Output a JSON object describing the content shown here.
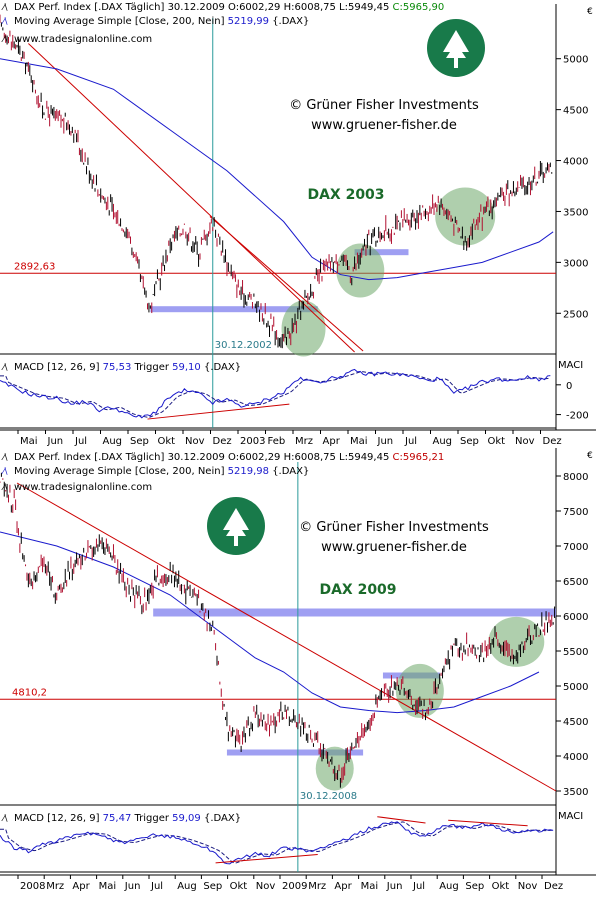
{
  "panels": [
    {
      "id": "p2003",
      "header": {
        "index_label": "DAX Perf. Index [.DAX  Täglich]",
        "date": "30.12.2009",
        "o": "O:6002,29",
        "hl": "H:6008,75 L:5949,45",
        "c": "C:5965,90",
        "ma_label": "Moving Average Simple [Close, 200, Nein]",
        "ma_value": "5219,99",
        "ma_suffix": "{.DAX}"
      },
      "site": "www.tradesignalonline.com",
      "copyright": "© Grüner Fisher Investments",
      "url": "www.gruener-fisher.de",
      "title": "DAX 2003",
      "hline_label": "2892,63",
      "vline_label": "30.12.2002",
      "macd_label": "MACD [12, 26, 9]",
      "macd_value": "75,53",
      "trigger_label": "Trigger",
      "trigger_value": "59,10",
      "macd_suffix": "{.DAX}",
      "macd_axis_title": "MACI",
      "euro": "€",
      "months": [
        "Mai",
        "Jun",
        "Jul",
        "Aug",
        "Sep",
        "Okt",
        "Nov",
        "Dez",
        "2003",
        "Feb",
        "Mrz",
        "Apr",
        "Mai",
        "Jun",
        "Jul",
        "Aug",
        "Sep",
        "Okt",
        "Nov",
        "Dez"
      ]
    },
    {
      "id": "p2009",
      "header": {
        "index_label": "DAX Perf. Index [.DAX  Täglich]",
        "date": "30.12.2009",
        "o": "O:6002,29",
        "hl": "H:6008,75 L:5949,45",
        "c": "C:5965,21",
        "ma_label": "Moving Average Simple [Close, 200, Nein]",
        "ma_value": "5219,98",
        "ma_suffix": "{.DAX}"
      },
      "site": "www.tradesignalonline.com",
      "copyright": "© Grüner Fisher Investments",
      "url": "www.gruener-fisher.de",
      "title": "DAX 2009",
      "hline_label": "4810,2",
      "vline_label": "30.12.2008",
      "macd_label": "MACD [12, 26, 9]",
      "macd_value": "75,47",
      "trigger_label": "Trigger",
      "trigger_value": "59,09",
      "macd_suffix": "{.DAX}",
      "macd_axis_title": "MACI",
      "euro": "€",
      "months": [
        "2008",
        "Mrz",
        "Apr",
        "Mai",
        "Jun",
        "Jul",
        "Aug",
        "Sep",
        "Okt",
        "Nov",
        "2009",
        "Mrz",
        "Apr",
        "Mai",
        "Jun",
        "Jul",
        "Aug",
        "Sep",
        "Okt",
        "Nov",
        "Dez"
      ]
    }
  ],
  "chart_data": [
    {
      "type": "line",
      "title": "DAX 2003",
      "series": [
        {
          "name": "DAX Perf. Index",
          "points": [
            [
              0,
              5300
            ],
            [
              0.5,
              5150
            ],
            [
              1,
              4900
            ],
            [
              1.5,
              4500
            ],
            [
              2,
              4400
            ],
            [
              2.5,
              4350
            ],
            [
              3,
              4000
            ],
            [
              3.5,
              3700
            ],
            [
              4,
              3500
            ],
            [
              4.5,
              3300
            ],
            [
              5,
              2800
            ],
            [
              5.3,
              2550
            ],
            [
              6,
              3200
            ],
            [
              6.5,
              3350
            ],
            [
              7,
              3100
            ],
            [
              7.5,
              3400
            ],
            [
              8,
              3000
            ],
            [
              8.5,
              2700
            ],
            [
              9,
              2600
            ],
            [
              9.5,
              2400
            ],
            [
              10,
              2200
            ],
            [
              10.5,
              2450
            ],
            [
              11,
              2750
            ],
            [
              11.3,
              2900
            ],
            [
              12,
              3050
            ],
            [
              12.4,
              2900
            ],
            [
              13,
              3200
            ],
            [
              13.5,
              3300
            ],
            [
              14,
              3350
            ],
            [
              14.5,
              3450
            ],
            [
              15,
              3500
            ],
            [
              15.5,
              3600
            ],
            [
              16,
              3400
            ],
            [
              16.4,
              3200
            ],
            [
              16.8,
              3400
            ],
            [
              17.5,
              3600
            ],
            [
              18,
              3700
            ],
            [
              18.5,
              3750
            ],
            [
              19,
              3850
            ],
            [
              19.5,
              3950
            ]
          ]
        },
        {
          "name": "Moving Average Simple [Close, 200, Nein]",
          "points": [
            [
              0,
              5000
            ],
            [
              2,
              4900
            ],
            [
              4,
              4700
            ],
            [
              6,
              4300
            ],
            [
              8,
              3900
            ],
            [
              10,
              3400
            ],
            [
              11,
              3050
            ],
            [
              12,
              2880
            ],
            [
              13,
              2830
            ],
            [
              14,
              2850
            ],
            [
              15,
              2900
            ],
            [
              16,
              2950
            ],
            [
              17,
              3000
            ],
            [
              18,
              3100
            ],
            [
              19,
              3200
            ],
            [
              19.5,
              3300
            ]
          ]
        }
      ],
      "ylim": [
        2100,
        5400
      ],
      "yticks": [
        2500,
        3000,
        3500,
        4000,
        4500,
        5000
      ],
      "annotations": {
        "hline": 2892.63,
        "support": 2540,
        "resistance": 3100,
        "vline_month": 7.5
      },
      "macd": {
        "ylim": [
          -290,
          180
        ],
        "yticks": [
          0,
          -200
        ],
        "macd": [
          [
            0,
            20
          ],
          [
            0.5,
            -20
          ],
          [
            1,
            -60
          ],
          [
            1.5,
            -80
          ],
          [
            2,
            -90
          ],
          [
            2.5,
            -130
          ],
          [
            3,
            -110
          ],
          [
            3.5,
            -170
          ],
          [
            4,
            -150
          ],
          [
            4.5,
            -200
          ],
          [
            5,
            -220
          ],
          [
            5.5,
            -180
          ],
          [
            6,
            -80
          ],
          [
            6.5,
            -40
          ],
          [
            7,
            -60
          ],
          [
            7.5,
            -120
          ],
          [
            8,
            -100
          ],
          [
            8.5,
            -140
          ],
          [
            9,
            -130
          ],
          [
            9.5,
            -90
          ],
          [
            10,
            -50
          ],
          [
            10.5,
            40
          ],
          [
            11,
            20
          ],
          [
            11.5,
            30
          ],
          [
            12,
            60
          ],
          [
            12.5,
            90
          ],
          [
            13,
            70
          ],
          [
            13.5,
            80
          ],
          [
            14,
            70
          ],
          [
            14.5,
            60
          ],
          [
            15,
            30
          ],
          [
            15.5,
            40
          ],
          [
            16,
            -60
          ],
          [
            16.5,
            -20
          ],
          [
            17,
            20
          ],
          [
            17.5,
            40
          ],
          [
            18,
            30
          ],
          [
            18.5,
            50
          ],
          [
            19,
            40
          ],
          [
            19.5,
            60
          ]
        ],
        "divergence": [
          [
            5.2,
            -230
          ],
          [
            10.2,
            -130
          ]
        ]
      }
    },
    {
      "type": "line",
      "title": "DAX 2009",
      "series": [
        {
          "name": "DAX Perf. Index",
          "points": [
            [
              0,
              8000
            ],
            [
              0.5,
              7600
            ],
            [
              1,
              6400
            ],
            [
              1.5,
              6800
            ],
            [
              2,
              6300
            ],
            [
              2.5,
              6700
            ],
            [
              3,
              6900
            ],
            [
              3.5,
              7100
            ],
            [
              4,
              6800
            ],
            [
              4.5,
              6400
            ],
            [
              5,
              6200
            ],
            [
              5.5,
              6500
            ],
            [
              6,
              6600
            ],
            [
              6.5,
              6400
            ],
            [
              7,
              6200
            ],
            [
              7.5,
              5800
            ],
            [
              8,
              4400
            ],
            [
              8.5,
              4200
            ],
            [
              9,
              4600
            ],
            [
              9.5,
              4400
            ],
            [
              10,
              4600
            ],
            [
              10.5,
              4500
            ],
            [
              11,
              4300
            ],
            [
              11.3,
              4100
            ],
            [
              12,
              3700
            ],
            [
              12.5,
              4200
            ],
            [
              13,
              4500
            ],
            [
              13.5,
              4900
            ],
            [
              14,
              5000
            ],
            [
              14.5,
              4800
            ],
            [
              15,
              4600
            ],
            [
              15.5,
              5100
            ],
            [
              16,
              5500
            ],
            [
              16.5,
              5600
            ],
            [
              17,
              5400
            ],
            [
              17.5,
              5700
            ],
            [
              18,
              5400
            ],
            [
              18.5,
              5650
            ],
            [
              19,
              5800
            ],
            [
              19.6,
              6000
            ]
          ]
        },
        {
          "name": "Moving Average Simple [Close, 200, Nein]",
          "points": [
            [
              0,
              7200
            ],
            [
              2,
              7000
            ],
            [
              4,
              6700
            ],
            [
              6,
              6300
            ],
            [
              8,
              5700
            ],
            [
              9,
              5400
            ],
            [
              10,
              5200
            ],
            [
              11,
              4900
            ],
            [
              12,
              4700
            ],
            [
              13,
              4650
            ],
            [
              14,
              4620
            ],
            [
              15,
              4650
            ],
            [
              16,
              4700
            ],
            [
              17,
              4850
            ],
            [
              18,
              5000
            ],
            [
              19,
              5200
            ]
          ]
        }
      ],
      "ylim": [
        3300,
        8200
      ],
      "yticks": [
        3500,
        4000,
        4500,
        5000,
        5500,
        6000,
        6500,
        7000,
        7500,
        8000
      ],
      "annotations": {
        "hline": 4810.2,
        "support": 4050,
        "resistance": 6050,
        "vline_month": 10.5
      },
      "macd": {
        "ylim": [
          -500,
          400
        ],
        "yticks": [],
        "macd": [
          [
            0,
            0
          ],
          [
            0.5,
            -150
          ],
          [
            1,
            -200
          ],
          [
            1.5,
            -100
          ],
          [
            2,
            -60
          ],
          [
            2.5,
            0
          ],
          [
            3,
            60
          ],
          [
            3.5,
            40
          ],
          [
            4,
            -60
          ],
          [
            4.5,
            -80
          ],
          [
            5,
            -20
          ],
          [
            5.5,
            30
          ],
          [
            6,
            10
          ],
          [
            6.5,
            -40
          ],
          [
            7,
            -110
          ],
          [
            7.5,
            -200
          ],
          [
            8,
            -380
          ],
          [
            8.5,
            -310
          ],
          [
            9,
            -240
          ],
          [
            9.5,
            -260
          ],
          [
            10,
            -150
          ],
          [
            10.5,
            -180
          ],
          [
            11,
            -210
          ],
          [
            11.5,
            -120
          ],
          [
            12,
            -60
          ],
          [
            12.5,
            20
          ],
          [
            13,
            120
          ],
          [
            13.5,
            180
          ],
          [
            14,
            220
          ],
          [
            14.5,
            60
          ],
          [
            15,
            10
          ],
          [
            15.5,
            140
          ],
          [
            16,
            160
          ],
          [
            16.5,
            120
          ],
          [
            17,
            180
          ],
          [
            17.5,
            140
          ],
          [
            18,
            60
          ],
          [
            18.5,
            100
          ],
          [
            19,
            90
          ],
          [
            19.6,
            110
          ]
        ],
        "divergence": [
          [
            7.6,
            -370
          ],
          [
            11.2,
            -250
          ]
        ]
      }
    }
  ]
}
